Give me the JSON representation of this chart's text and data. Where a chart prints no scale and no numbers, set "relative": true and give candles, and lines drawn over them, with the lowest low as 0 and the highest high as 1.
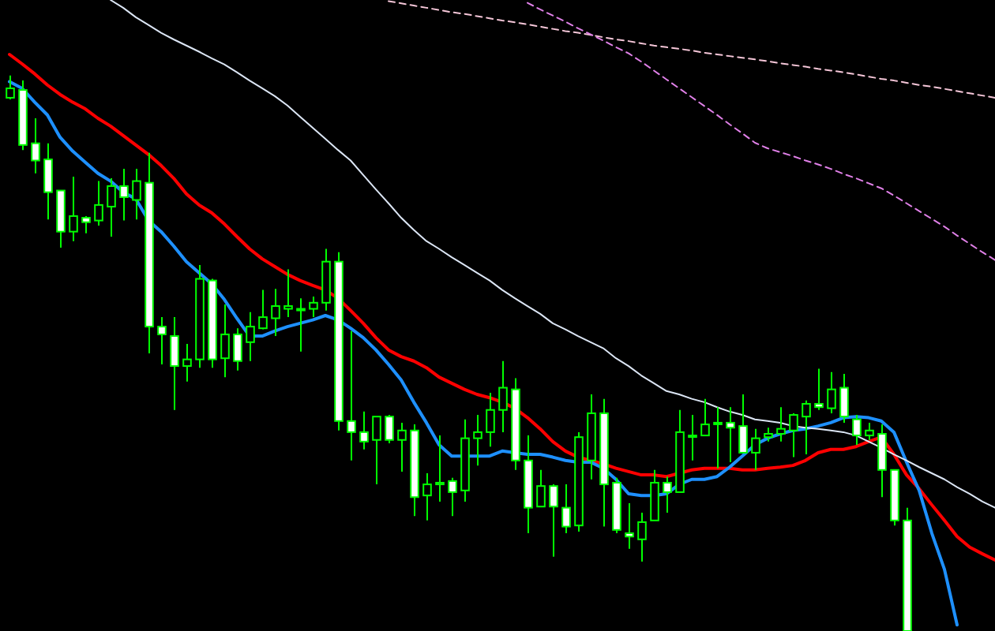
{
  "chart_data": {
    "type": "candlestick",
    "relative": true,
    "color": "#00ff00",
    "categories": [
      null,
      null,
      null,
      null,
      null,
      null,
      null,
      null,
      null,
      null,
      null,
      null,
      null,
      null,
      null,
      null,
      null,
      null,
      null,
      null,
      null,
      null,
      null,
      null,
      null,
      null,
      null,
      null,
      null,
      null,
      null,
      null,
      null,
      null,
      null,
      null,
      null,
      null,
      null,
      null,
      null,
      null,
      null,
      null,
      null,
      null,
      null,
      null,
      null,
      null,
      null,
      null,
      null,
      null,
      null,
      null,
      null,
      null,
      null,
      null,
      null,
      null,
      null,
      null,
      null,
      null,
      null,
      null,
      null,
      null,
      null,
      null,
      null,
      null,
      null,
      null,
      null,
      null,
      null
    ],
    "ohlc": [
      [
        0.96,
        1,
        0.957,
        0.977
      ],
      [
        0.974,
        0.991,
        0.866,
        0.875
      ],
      [
        0.878,
        0.923,
        0.824,
        0.847
      ],
      [
        0.849,
        0.878,
        0.741,
        0.79
      ],
      [
        0.793,
        0.793,
        0.69,
        0.719
      ],
      [
        0.719,
        0.818,
        0.702,
        0.747
      ],
      [
        0.744,
        0.747,
        0.716,
        0.736
      ],
      [
        0.739,
        0.81,
        0.73,
        0.767
      ],
      [
        0.764,
        0.815,
        0.71,
        0.801
      ],
      [
        0.801,
        0.832,
        0.739,
        0.781
      ],
      [
        0.776,
        0.832,
        0.741,
        0.81
      ],
      [
        0.807,
        0.861,
        0.5,
        0.548
      ],
      [
        0.548,
        0.565,
        0.48,
        0.534
      ],
      [
        0.531,
        0.565,
        0.398,
        0.477
      ],
      [
        0.477,
        0.517,
        0.449,
        0.489
      ],
      [
        0.489,
        0.659,
        0.474,
        0.634
      ],
      [
        0.631,
        0.634,
        0.474,
        0.489
      ],
      [
        0.491,
        0.588,
        0.457,
        0.534
      ],
      [
        0.534,
        0.545,
        0.469,
        0.486
      ],
      [
        0.52,
        0.574,
        0.486,
        0.548
      ],
      [
        0.545,
        0.614,
        0.543,
        0.565
      ],
      [
        0.563,
        0.616,
        0.531,
        0.585
      ],
      [
        0.58,
        0.651,
        0.565,
        0.585
      ],
      [
        0.58,
        0.599,
        0.503,
        0.58
      ],
      [
        0.58,
        0.602,
        0.565,
        0.591
      ],
      [
        0.591,
        0.688,
        0.577,
        0.665
      ],
      [
        0.665,
        0.682,
        0.361,
        0.378
      ],
      [
        0.378,
        0.54,
        0.307,
        0.358
      ],
      [
        0.358,
        0.395,
        0.327,
        0.341
      ],
      [
        0.344,
        0.386,
        0.264,
        0.386
      ],
      [
        0.386,
        0.389,
        0.338,
        0.344
      ],
      [
        0.344,
        0.375,
        0.287,
        0.361
      ],
      [
        0.361,
        0.372,
        0.207,
        0.241
      ],
      [
        0.244,
        0.284,
        0.199,
        0.264
      ],
      [
        0.264,
        0.352,
        0.233,
        0.267
      ],
      [
        0.27,
        0.276,
        0.207,
        0.25
      ],
      [
        0.253,
        0.381,
        0.233,
        0.347
      ],
      [
        0.347,
        0.389,
        0.298,
        0.358
      ],
      [
        0.358,
        0.429,
        0.332,
        0.398
      ],
      [
        0.398,
        0.486,
        0.358,
        0.438
      ],
      [
        0.435,
        0.455,
        0.29,
        0.307
      ],
      [
        0.307,
        0.352,
        0.176,
        0.222
      ],
      [
        0.224,
        0.29,
        0.224,
        0.261
      ],
      [
        0.261,
        0.264,
        0.134,
        0.224
      ],
      [
        0.222,
        0.264,
        0.176,
        0.188
      ],
      [
        0.19,
        0.358,
        0.179,
        0.349
      ],
      [
        0.307,
        0.426,
        0.273,
        0.392
      ],
      [
        0.392,
        0.418,
        0.188,
        0.264
      ],
      [
        0.267,
        0.276,
        0.176,
        0.182
      ],
      [
        0.176,
        0.23,
        0.148,
        0.17
      ],
      [
        0.165,
        0.213,
        0.125,
        0.196
      ],
      [
        0.199,
        0.29,
        0.199,
        0.267
      ],
      [
        0.267,
        0.278,
        0.213,
        0.25
      ],
      [
        0.25,
        0.398,
        0.25,
        0.358
      ],
      [
        0.352,
        0.389,
        0.307,
        0.352
      ],
      [
        0.352,
        0.418,
        0.352,
        0.372
      ],
      [
        0.375,
        0.403,
        0.293,
        0.375
      ],
      [
        0.375,
        0.403,
        0.304,
        0.366
      ],
      [
        0.369,
        0.426,
        0.321,
        0.321
      ],
      [
        0.321,
        0.364,
        0.29,
        0.347
      ],
      [
        0.349,
        0.366,
        0.341,
        0.355
      ],
      [
        0.355,
        0.403,
        0.341,
        0.364
      ],
      [
        0.361,
        0.392,
        0.313,
        0.389
      ],
      [
        0.386,
        0.415,
        0.318,
        0.409
      ],
      [
        0.409,
        0.472,
        0.398,
        0.403
      ],
      [
        0.401,
        0.466,
        0.392,
        0.435
      ],
      [
        0.438,
        0.463,
        0.375,
        0.386
      ],
      [
        0.381,
        0.389,
        0.335,
        0.352
      ],
      [
        0.352,
        0.375,
        0.344,
        0.361
      ],
      [
        0.355,
        0.372,
        0.241,
        0.29
      ],
      [
        0.29,
        0.29,
        0.19,
        0.199
      ],
      [
        0.199,
        0.222,
        0,
        0
      ],
      null,
      null,
      null,
      null,
      null,
      null,
      null
    ],
    "series": [
      {
        "type": "line",
        "color": "#ff0000",
        "line_style": "solid",
        "values": [
          1.038,
          1.021,
          1.003,
          0.983,
          0.966,
          0.952,
          0.94,
          0.923,
          0.909,
          0.892,
          0.875,
          0.858,
          0.838,
          0.815,
          0.787,
          0.767,
          0.753,
          0.733,
          0.71,
          0.688,
          0.67,
          0.656,
          0.642,
          0.631,
          0.622,
          0.614,
          0.599,
          0.577,
          0.554,
          0.528,
          0.506,
          0.494,
          0.486,
          0.474,
          0.457,
          0.446,
          0.435,
          0.426,
          0.42,
          0.412,
          0.401,
          0.384,
          0.364,
          0.341,
          0.324,
          0.313,
          0.307,
          0.301,
          0.293,
          0.287,
          0.281,
          0.281,
          0.278,
          0.284,
          0.29,
          0.293,
          0.293,
          0.293,
          0.29,
          0.29,
          0.293,
          0.295,
          0.298,
          0.307,
          0.321,
          0.327,
          0.327,
          0.332,
          0.341,
          0.349,
          0.318,
          0.281,
          0.256,
          0.227,
          0.199,
          0.17,
          0.151,
          0.139,
          0.128
        ]
      },
      {
        "type": "line",
        "color": "#1e90ff",
        "line_style": "solid",
        "values": [
          0.989,
          0.977,
          0.952,
          0.929,
          0.889,
          0.864,
          0.844,
          0.824,
          0.81,
          0.79,
          0.778,
          0.739,
          0.719,
          0.693,
          0.665,
          0.645,
          0.625,
          0.597,
          0.563,
          0.531,
          0.531,
          0.54,
          0.548,
          0.554,
          0.56,
          0.568,
          0.56,
          0.545,
          0.528,
          0.506,
          0.48,
          0.452,
          0.412,
          0.375,
          0.335,
          0.315,
          0.315,
          0.315,
          0.315,
          0.324,
          0.321,
          0.318,
          0.318,
          0.313,
          0.307,
          0.304,
          0.304,
          0.293,
          0.273,
          0.247,
          0.244,
          0.244,
          0.247,
          0.264,
          0.273,
          0.273,
          0.278,
          0.295,
          0.315,
          0.335,
          0.347,
          0.355,
          0.361,
          0.364,
          0.369,
          0.375,
          0.384,
          0.386,
          0.384,
          0.378,
          0.358,
          0.304,
          0.253,
          0.176,
          0.111,
          0.011,
          null,
          null,
          null
        ]
      },
      {
        "type": "line",
        "color": "#dce6f5",
        "line_style": "solid",
        "values": [
          null,
          null,
          null,
          null,
          null,
          null,
          null,
          null,
          1.136,
          1.122,
          1.105,
          1.091,
          1.077,
          1.065,
          1.054,
          1.043,
          1.031,
          1.02,
          1.006,
          0.991,
          0.977,
          0.963,
          0.946,
          0.926,
          0.906,
          0.886,
          0.866,
          0.847,
          0.821,
          0.795,
          0.77,
          0.744,
          0.722,
          0.702,
          0.688,
          0.673,
          0.659,
          0.645,
          0.631,
          0.614,
          0.599,
          0.585,
          0.571,
          0.554,
          0.543,
          0.531,
          0.52,
          0.509,
          0.491,
          0.477,
          0.46,
          0.446,
          0.432,
          0.426,
          0.418,
          0.412,
          0.403,
          0.395,
          0.389,
          0.381,
          0.378,
          0.375,
          0.369,
          0.366,
          0.364,
          0.361,
          0.358,
          0.352,
          0.341,
          0.33,
          0.318,
          0.307,
          0.295,
          0.284,
          0.273,
          0.259,
          0.247,
          0.233,
          0.222
        ]
      },
      {
        "type": "line",
        "color": "#f5c6d8",
        "line_style": "dashed",
        "values": [
          null,
          null,
          null,
          null,
          null,
          null,
          null,
          null,
          null,
          null,
          null,
          null,
          null,
          null,
          null,
          null,
          null,
          null,
          null,
          null,
          null,
          null,
          null,
          null,
          null,
          null,
          null,
          null,
          null,
          null,
          1.134,
          1.13,
          1.126,
          1.122,
          1.118,
          1.114,
          1.111,
          1.107,
          1.103,
          1.099,
          1.096,
          1.092,
          1.088,
          1.084,
          1.08,
          1.077,
          1.073,
          1.069,
          1.065,
          1.062,
          1.058,
          1.054,
          1.051,
          1.048,
          1.045,
          1.041,
          1.038,
          1.035,
          1.032,
          1.029,
          1.026,
          1.022,
          1.019,
          1.016,
          1.012,
          1.009,
          1.006,
          1.002,
          0.998,
          0.994,
          0.991,
          0.987,
          0.983,
          0.98,
          0.976,
          0.972,
          0.968,
          0.964,
          0.96
        ]
      },
      {
        "type": "line",
        "color": "#e080e8",
        "line_style": "dashed",
        "values": [
          null,
          null,
          null,
          null,
          null,
          null,
          null,
          null,
          null,
          null,
          null,
          null,
          null,
          null,
          null,
          null,
          null,
          null,
          null,
          null,
          null,
          null,
          null,
          null,
          null,
          null,
          null,
          null,
          null,
          null,
          null,
          null,
          null,
          null,
          null,
          null,
          null,
          null,
          null,
          null,
          null,
          1.131,
          1.119,
          1.108,
          1.097,
          1.085,
          1.074,
          1.063,
          1.051,
          1.04,
          1.025,
          1.009,
          0.993,
          0.977,
          0.961,
          0.945,
          0.929,
          0.912,
          0.896,
          0.879,
          0.869,
          0.862,
          0.855,
          0.847,
          0.84,
          0.832,
          0.823,
          0.815,
          0.806,
          0.797,
          0.784,
          0.77,
          0.756,
          0.742,
          0.728,
          0.712,
          0.697,
          0.682,
          0.668
        ]
      }
    ]
  }
}
